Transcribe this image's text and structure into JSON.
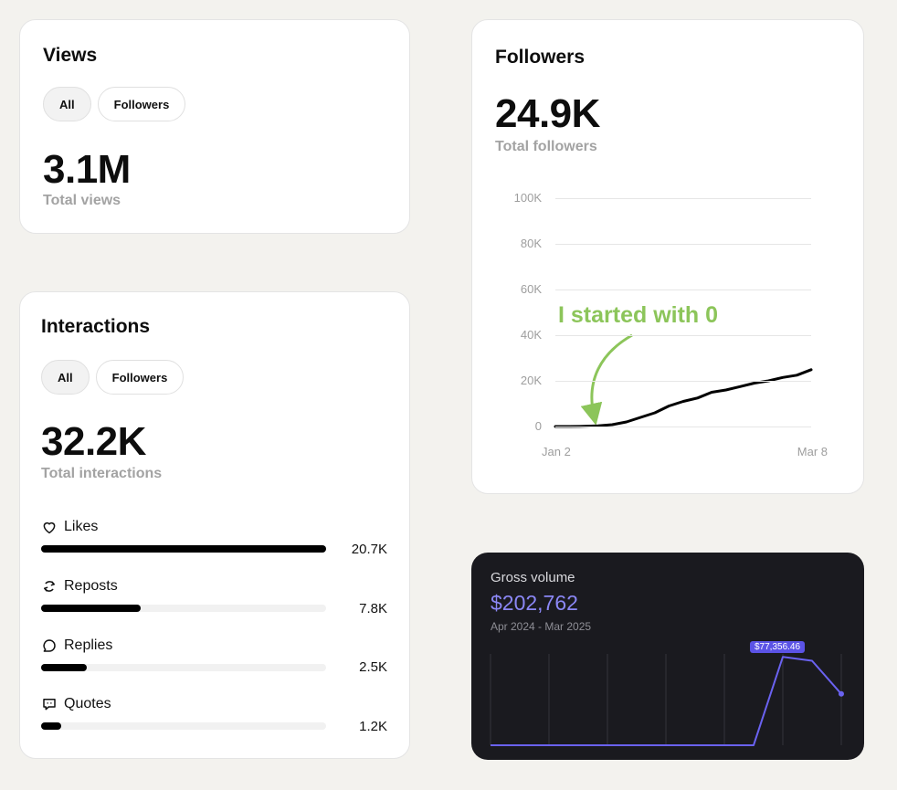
{
  "views": {
    "title": "Views",
    "filters": [
      {
        "label": "All",
        "active": true
      },
      {
        "label": "Followers",
        "active": false
      }
    ],
    "total": "3.1M",
    "total_label": "Total views"
  },
  "interactions": {
    "title": "Interactions",
    "filters": [
      {
        "label": "All",
        "active": true
      },
      {
        "label": "Followers",
        "active": false
      }
    ],
    "total": "32.2K",
    "total_label": "Total interactions",
    "metrics": [
      {
        "label": "Likes",
        "icon": "heart-icon",
        "value": "20.7K",
        "fraction": 1.0
      },
      {
        "label": "Reposts",
        "icon": "repost-icon",
        "value": "7.8K",
        "fraction": 0.35
      },
      {
        "label": "Replies",
        "icon": "reply-icon",
        "value": "2.5K",
        "fraction": 0.16
      },
      {
        "label": "Quotes",
        "icon": "quote-icon",
        "value": "1.2K",
        "fraction": 0.07
      }
    ]
  },
  "followers": {
    "title": "Followers",
    "total": "24.9K",
    "total_label": "Total followers",
    "annotation": "I started with 0",
    "chart_data": {
      "type": "line",
      "x_ticks": [
        "Jan 2",
        "Mar 8"
      ],
      "y_ticks": [
        "0",
        "20K",
        "40K",
        "60K",
        "80K",
        "100K"
      ],
      "ylim": [
        0,
        100000
      ],
      "grid": true,
      "series": [
        {
          "values": [
            0,
            0,
            100,
            300,
            800,
            2000,
            4000,
            6000,
            9000,
            11000,
            12500,
            15000,
            16000,
            17500,
            19000,
            20000,
            21500,
            22500,
            24900
          ]
        }
      ]
    }
  },
  "gross_volume": {
    "title": "Gross volume",
    "amount": "$202,762",
    "range": "Apr 2024 - Mar 2025",
    "tooltip": "$77,356.46",
    "colors": {
      "background": "#1a1a1f",
      "line": "#6a62f0",
      "accent": "#8b87f5"
    },
    "chart_data": {
      "type": "line",
      "values": [
        0,
        0,
        0,
        0,
        0,
        0,
        0,
        0,
        0,
        0,
        77356.46,
        74000,
        45000
      ],
      "ylim": [
        0,
        80000
      ],
      "grid": false
    }
  }
}
